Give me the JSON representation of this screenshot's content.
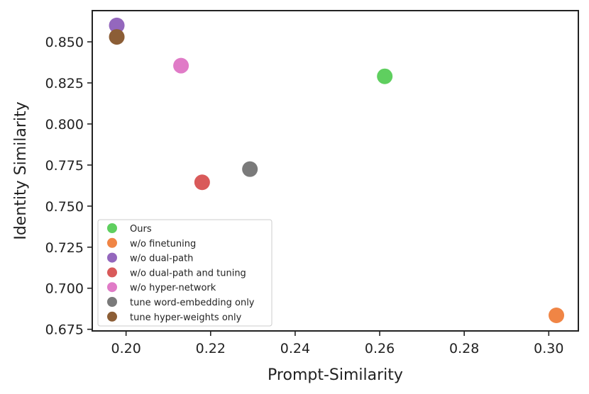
{
  "chart_data": {
    "type": "scatter",
    "title": "",
    "xlabel": "Prompt-Similarity",
    "ylabel": "Identity Similarity",
    "xlim": [
      0.192,
      0.307
    ],
    "ylim": [
      0.674,
      0.869
    ],
    "xticks": [
      0.2,
      0.22,
      0.24,
      0.26,
      0.28,
      0.3
    ],
    "xtick_labels": [
      "0.20",
      "0.22",
      "0.24",
      "0.26",
      "0.28",
      "0.30"
    ],
    "yticks": [
      0.675,
      0.7,
      0.725,
      0.75,
      0.775,
      0.8,
      0.825,
      0.85
    ],
    "ytick_labels": [
      "0.675",
      "0.700",
      "0.725",
      "0.750",
      "0.775",
      "0.800",
      "0.825",
      "0.850"
    ],
    "grid": false,
    "legend_position": "lower-left",
    "series": [
      {
        "name": "Ours",
        "color": "#5fcf5f",
        "x": 0.2612,
        "y": 0.829
      },
      {
        "name": "w/o finetuning",
        "color": "#f08545",
        "x": 0.3018,
        "y": 0.6835
      },
      {
        "name": "w/o dual-path",
        "color": "#9467bd",
        "x": 0.1978,
        "y": 0.86
      },
      {
        "name": "w/o dual-path and tuning",
        "color": "#d95a5a",
        "x": 0.218,
        "y": 0.7645
      },
      {
        "name": "w/o hyper-network",
        "color": "#e07bc7",
        "x": 0.213,
        "y": 0.8355
      },
      {
        "name": "tune word-embedding only",
        "color": "#7a7a7a",
        "x": 0.2293,
        "y": 0.7725
      },
      {
        "name": "tune hyper-weights only",
        "color": "#8c5e36",
        "x": 0.1978,
        "y": 0.853
      }
    ]
  }
}
